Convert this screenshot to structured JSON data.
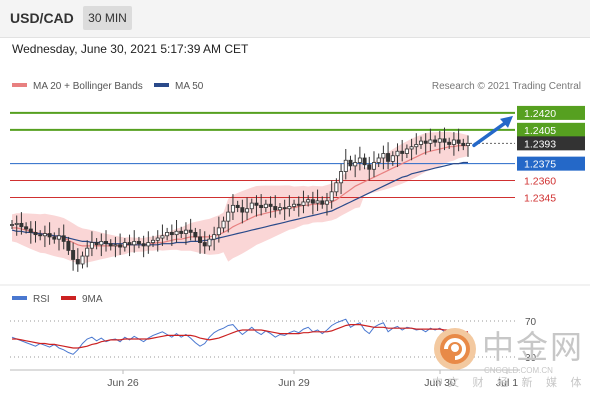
{
  "header": {
    "symbol": "USD/CAD",
    "timeframe": "30 MIN"
  },
  "timestamp": "Wednesday, June 30, 2021 5:17:39 AM CET",
  "credit": "Research © 2021 Trading Central",
  "watermark": {
    "chinese": "中金网",
    "url": "CNGOLD.COM.CN",
    "subtitle": "中文 财 经 新 媒 体"
  },
  "colors": {
    "green": "#56a020",
    "blue": "#2468c8",
    "red": "#d03030",
    "dark": "#333333",
    "ma20": "#e88080",
    "ma50": "#2a4a8a",
    "band": "#f8c8c8",
    "candle": "#333333",
    "rsi": "#4a78d0",
    "rsi_ma": "#cc2222"
  },
  "chart_data": [
    {
      "type": "candlestick",
      "legend": [
        "MA 20 + Bollinger Bands",
        "MA 50"
      ],
      "x_labels": [
        "Jun 26",
        "Jun 29",
        "Jun 30",
        "Jul 1"
      ],
      "ylim": [
        1.227,
        1.2435
      ],
      "levels": [
        {
          "value": 1.242,
          "label": "1.2420",
          "color": "green",
          "type": "target"
        },
        {
          "value": 1.2405,
          "label": "1.2405",
          "color": "green",
          "type": "target"
        },
        {
          "value": 1.2393,
          "label": "1.2393",
          "color": "dark",
          "type": "last-price"
        },
        {
          "value": 1.2375,
          "label": "1.2375",
          "color": "blue",
          "type": "pivot"
        },
        {
          "value": 1.236,
          "label": "1.2360",
          "color": "red",
          "type": "support"
        },
        {
          "value": 1.2345,
          "label": "1.2345",
          "color": "red",
          "type": "support"
        }
      ],
      "close_series": [
        1.2321,
        1.2322,
        1.2319,
        1.2317,
        1.2314,
        1.2312,
        1.2311,
        1.2313,
        1.231,
        1.2308,
        1.2311,
        1.2306,
        1.2298,
        1.229,
        1.2286,
        1.2293,
        1.23,
        1.2305,
        1.2303,
        1.2306,
        1.2304,
        1.2302,
        1.2303,
        1.2301,
        1.2305,
        1.2303,
        1.2306,
        1.2304,
        1.2302,
        1.2305,
        1.2307,
        1.2309,
        1.2311,
        1.2314,
        1.2312,
        1.2315,
        1.2313,
        1.2316,
        1.2314,
        1.231,
        1.2305,
        1.2302,
        1.2308,
        1.2312,
        1.2318,
        1.2324,
        1.2332,
        1.2338,
        1.2336,
        1.2332,
        1.2335,
        1.234,
        1.2338,
        1.2336,
        1.2339,
        1.2337,
        1.2334,
        1.2336,
        1.2335,
        1.2337,
        1.2339,
        1.2338,
        1.2341,
        1.2343,
        1.234,
        1.2342,
        1.2339,
        1.2342,
        1.235,
        1.2358,
        1.2368,
        1.2378,
        1.2373,
        1.2376,
        1.238,
        1.2374,
        1.237,
        1.2376,
        1.238,
        1.2384,
        1.2377,
        1.2382,
        1.2386,
        1.2384,
        1.2388,
        1.239,
        1.2392,
        1.2395,
        1.2393,
        1.2396,
        1.2394,
        1.2397,
        1.2394,
        1.2392,
        1.2396,
        1.2393,
        1.2391,
        1.2393
      ],
      "ma20_series": [
        1.2318,
        1.2318,
        1.2317,
        1.2316,
        1.2315,
        1.2314,
        1.2313,
        1.2313,
        1.2312,
        1.2311,
        1.231,
        1.2309,
        1.2307,
        1.2305,
        1.2303,
        1.2302,
        1.2302,
        1.2302,
        1.2302,
        1.2302,
        1.2302,
        1.2302,
        1.2302,
        1.2302,
        1.2302,
        1.2303,
        1.2303,
        1.2303,
        1.2303,
        1.2304,
        1.2304,
        1.2305,
        1.2305,
        1.2306,
        1.2307,
        1.2308,
        1.2308,
        1.2309,
        1.231,
        1.231,
        1.231,
        1.231,
        1.231,
        1.2311,
        1.2312,
        1.2314,
        1.2316,
        1.2319,
        1.2321,
        1.2323,
        1.2325,
        1.2327,
        1.2329,
        1.233,
        1.2331,
        1.2332,
        1.2333,
        1.2334,
        1.2335,
        1.2336,
        1.2336,
        1.2337,
        1.2338,
        1.2338,
        1.2339,
        1.2339,
        1.2339,
        1.234,
        1.2341,
        1.2343,
        1.2346,
        1.2349,
        1.2352,
        1.2355,
        1.2357,
        1.2359,
        1.2361,
        1.2363,
        1.2365,
        1.2367,
        1.2369,
        1.2371,
        1.2373,
        1.2375,
        1.2377,
        1.2379,
        1.2381,
        1.2383,
        1.2385,
        1.2386,
        1.2387,
        1.2388,
        1.2389,
        1.239,
        1.239,
        1.2391,
        1.2391,
        1.2391
      ],
      "ma50_series": [
        1.2316,
        1.2315,
        1.2315,
        1.2314,
        1.2314,
        1.2313,
        1.2313,
        1.2312,
        1.2312,
        1.2311,
        1.2311,
        1.231,
        1.2309,
        1.2308,
        1.2307,
        1.2306,
        1.2306,
        1.2305,
        1.2305,
        1.2305,
        1.2304,
        1.2304,
        1.2304,
        1.2304,
        1.2304,
        1.2303,
        1.2303,
        1.2303,
        1.2303,
        1.2303,
        1.2303,
        1.2303,
        1.2304,
        1.2304,
        1.2304,
        1.2305,
        1.2305,
        1.2305,
        1.2306,
        1.2306,
        1.2306,
        1.2307,
        1.2307,
        1.2308,
        1.2309,
        1.231,
        1.2311,
        1.2312,
        1.2313,
        1.2314,
        1.2315,
        1.2316,
        1.2317,
        1.2318,
        1.2319,
        1.232,
        1.2321,
        1.2322,
        1.2323,
        1.2324,
        1.2325,
        1.2326,
        1.2327,
        1.2328,
        1.2329,
        1.233,
        1.2331,
        1.2332,
        1.2333,
        1.2335,
        1.2337,
        1.2339,
        1.2341,
        1.2343,
        1.2345,
        1.2347,
        1.2349,
        1.2351,
        1.2353,
        1.2355,
        1.2357,
        1.2359,
        1.2361,
        1.2363,
        1.2364,
        1.2366,
        1.2367,
        1.2368,
        1.2369,
        1.237,
        1.2371,
        1.2372,
        1.2373,
        1.2374,
        1.2375,
        1.2375,
        1.2376,
        1.2376
      ]
    },
    {
      "type": "line",
      "legend": [
        "RSI",
        "9MA"
      ],
      "ylim": [
        20,
        80
      ],
      "yticks": [
        70,
        30
      ],
      "rsi_series": [
        52,
        50,
        48,
        46,
        44,
        42,
        45,
        43,
        41,
        44,
        40,
        38,
        35,
        33,
        38,
        45,
        50,
        52,
        48,
        51,
        47,
        49,
        50,
        47,
        52,
        49,
        53,
        50,
        47,
        51,
        54,
        56,
        58,
        55,
        52,
        56,
        52,
        55,
        51,
        46,
        42,
        45,
        52,
        57,
        60,
        62,
        65,
        66,
        60,
        55,
        59,
        63,
        58,
        55,
        59,
        56,
        52,
        55,
        54,
        57,
        59,
        57,
        61,
        63,
        58,
        60,
        56,
        60,
        65,
        68,
        70,
        72,
        63,
        66,
        68,
        60,
        56,
        63,
        66,
        68,
        58,
        62,
        64,
        60,
        63,
        62,
        60,
        61,
        58,
        62,
        60,
        62,
        58,
        56,
        60,
        57,
        55,
        58
      ],
      "rsi_ma_series": [
        50,
        50,
        49,
        48,
        47,
        46,
        45,
        45,
        44,
        44,
        43,
        42,
        41,
        40,
        40,
        41,
        42,
        44,
        45,
        47,
        48,
        49,
        49,
        49,
        50,
        50,
        50,
        50,
        50,
        50,
        51,
        52,
        53,
        54,
        54,
        54,
        54,
        54,
        54,
        53,
        51,
        50,
        49,
        50,
        51,
        53,
        55,
        57,
        59,
        60,
        60,
        60,
        60,
        60,
        59,
        58,
        57,
        56,
        56,
        56,
        56,
        56,
        57,
        57,
        58,
        58,
        58,
        58,
        59,
        61,
        63,
        65,
        66,
        66,
        66,
        65,
        64,
        63,
        63,
        63,
        62,
        62,
        62,
        62,
        62,
        62,
        61,
        61,
        61,
        61,
        61,
        61,
        60,
        60,
        59,
        59,
        58,
        58
      ]
    }
  ]
}
